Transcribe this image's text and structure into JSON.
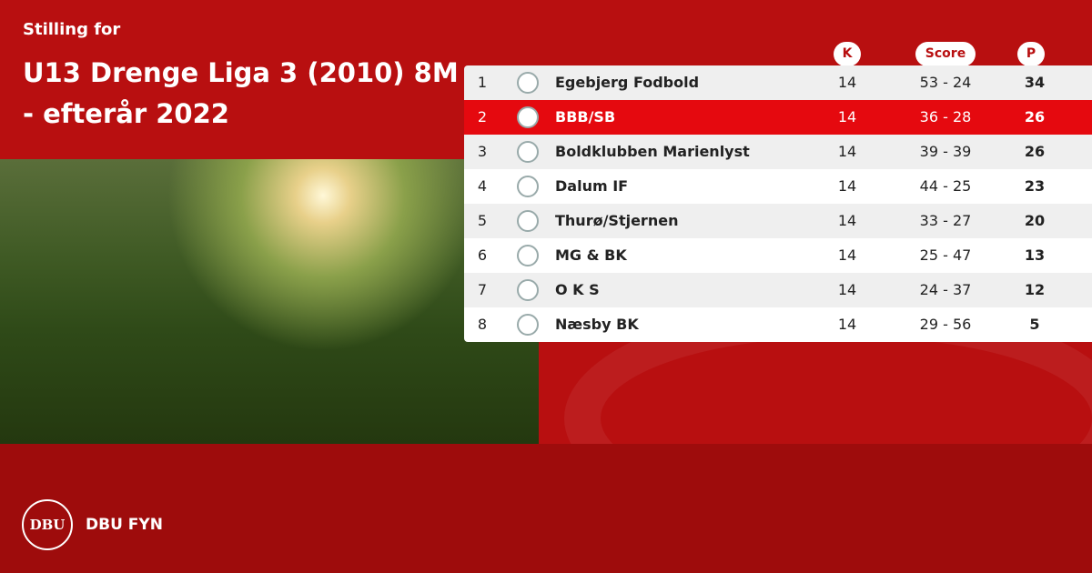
{
  "header": {
    "kicker": "Stilling for",
    "title": "U13 Drenge Liga 3 (2010) 8M - efterår 2022"
  },
  "table": {
    "columns": [
      "K",
      "Score",
      "P"
    ],
    "rows": [
      {
        "rank": 1,
        "team": "Egebjerg Fodbold",
        "played": 14,
        "score": "53 - 24",
        "points": 34
      },
      {
        "rank": 2,
        "team": "BBB/SB",
        "played": 14,
        "score": "36 - 28",
        "points": 26
      },
      {
        "rank": 3,
        "team": "Boldklubben Marienlyst",
        "played": 14,
        "score": "39 - 39",
        "points": 26
      },
      {
        "rank": 4,
        "team": "Dalum IF",
        "played": 14,
        "score": "44 - 25",
        "points": 23
      },
      {
        "rank": 5,
        "team": "Thurø/Stjernen",
        "played": 14,
        "score": "33 - 27",
        "points": 20
      },
      {
        "rank": 6,
        "team": "MG & BK",
        "played": 14,
        "score": "25 - 47",
        "points": 13
      },
      {
        "rank": 7,
        "team": "O K S",
        "played": 14,
        "score": "24 - 37",
        "points": 12
      },
      {
        "rank": 8,
        "team": "Næsby BK",
        "played": 14,
        "score": "29 - 56",
        "points": 5
      }
    ]
  },
  "footer": {
    "logo_text": "DBU",
    "brand": "DBU FYN"
  }
}
